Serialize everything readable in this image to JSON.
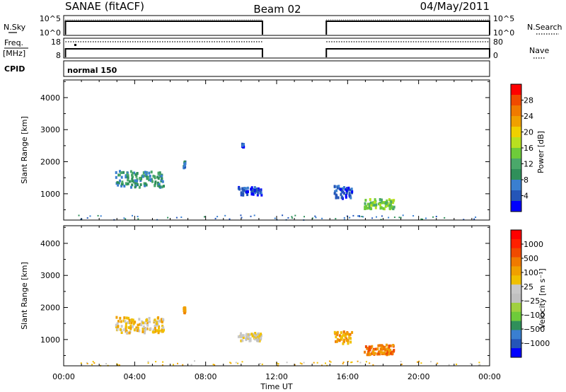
{
  "title": {
    "left": "SANAE (fitACF)",
    "center": "Beam 02",
    "right": "04/May/2011"
  },
  "chart_data": [
    {
      "type": "line",
      "panel": "noise",
      "left_label": "N.Sky",
      "left_ticks": [
        "10^5",
        "10^0"
      ],
      "right_label": "N.Search",
      "right_ticks": [
        "10^5",
        "10^0"
      ],
      "segments_hours": [
        [
          0.1,
          11.2
        ],
        [
          14.8,
          24.0
        ]
      ],
      "level": "near 10^5"
    },
    {
      "type": "line",
      "panel": "frequency",
      "left_label": "Freq.",
      "left_unit": "[MHz]",
      "left_ticks": [
        "18",
        "8"
      ],
      "right_label": "Nave",
      "right_ticks": [
        "80",
        "0"
      ],
      "segments_hours": [
        [
          0.1,
          11.2
        ],
        [
          14.8,
          24.0
        ]
      ]
    },
    {
      "type": "table",
      "panel": "cpid",
      "label": "CPID",
      "program": "normal 150"
    },
    {
      "type": "heatmap",
      "panel": "power",
      "ylabel": "Slant Range [km]",
      "yticks": [
        1000,
        2000,
        3000,
        4000
      ],
      "ylim": [
        180,
        4550
      ],
      "xlim_hours": [
        0,
        24
      ],
      "colorbar_label": "Power [dB]",
      "colorbar_ticks": [
        "28",
        "24",
        "20",
        "16",
        "12",
        "8",
        "4"
      ],
      "colors": [
        "#0000ff",
        "#2455b8",
        "#3a7fd0",
        "#2f8f5a",
        "#4aa86a",
        "#6ecb3a",
        "#b8e020",
        "#f0d000",
        "#f0a000",
        "#f07a00",
        "#f04a00",
        "#ff0000"
      ],
      "clusters": [
        {
          "t0": 2.9,
          "t1": 5.6,
          "r0": 1200,
          "r1": 1700,
          "level": 3
        },
        {
          "t0": 6.7,
          "t1": 6.8,
          "r0": 1800,
          "r1": 2000,
          "level": 2
        },
        {
          "t0": 9.8,
          "t1": 11.1,
          "r0": 950,
          "r1": 1200,
          "level": 1
        },
        {
          "t0": 10.0,
          "t1": 10.1,
          "r0": 2450,
          "r1": 2550,
          "level": 1
        },
        {
          "t0": 15.2,
          "t1": 16.2,
          "r0": 850,
          "r1": 1250,
          "level": 1
        },
        {
          "t0": 16.9,
          "t1": 18.6,
          "r0": 520,
          "r1": 830,
          "level": 5
        },
        {
          "t0": 0.5,
          "t1": 23.5,
          "r0": 180,
          "r1": 330,
          "level": 2
        }
      ]
    },
    {
      "type": "heatmap",
      "panel": "velocity",
      "ylabel": "Slant Range [km]",
      "yticks": [
        1000,
        2000,
        3000,
        4000
      ],
      "ylim": [
        180,
        4550
      ],
      "xlim_hours": [
        0,
        24
      ],
      "xticks": [
        "00:00",
        "04:00",
        "08:00",
        "12:00",
        "16:00",
        "20:00",
        "00:00"
      ],
      "xlabel": "Time UT",
      "colorbar_label": "Velocity [m s⁻¹]",
      "colorbar_ticks": [
        "1000",
        "500",
        "100",
        "25",
        "−25",
        "−100",
        "−500",
        "−1000"
      ],
      "colors": [
        "#0000ff",
        "#2455b8",
        "#3a7fd0",
        "#2f8f5a",
        "#6ecb3a",
        "#a0d040",
        "#c0c0c0",
        "#c8c8c8",
        "#f0c000",
        "#f0a000",
        "#f07a00",
        "#f04a00",
        "#ff2000",
        "#ff0000"
      ],
      "clusters": [
        {
          "t0": 2.9,
          "t1": 5.6,
          "r0": 1200,
          "r1": 1700,
          "level": 8
        },
        {
          "t0": 6.7,
          "t1": 6.8,
          "r0": 1800,
          "r1": 2000,
          "level": 9
        },
        {
          "t0": 9.8,
          "t1": 11.1,
          "r0": 950,
          "r1": 1200,
          "level": 7
        },
        {
          "t0": 15.2,
          "t1": 16.2,
          "r0": 850,
          "r1": 1250,
          "level": 9
        },
        {
          "t0": 16.9,
          "t1": 18.6,
          "r0": 520,
          "r1": 830,
          "level": 10
        },
        {
          "t0": 0.5,
          "t1": 23.5,
          "r0": 180,
          "r1": 330,
          "level": 8
        }
      ]
    }
  ]
}
